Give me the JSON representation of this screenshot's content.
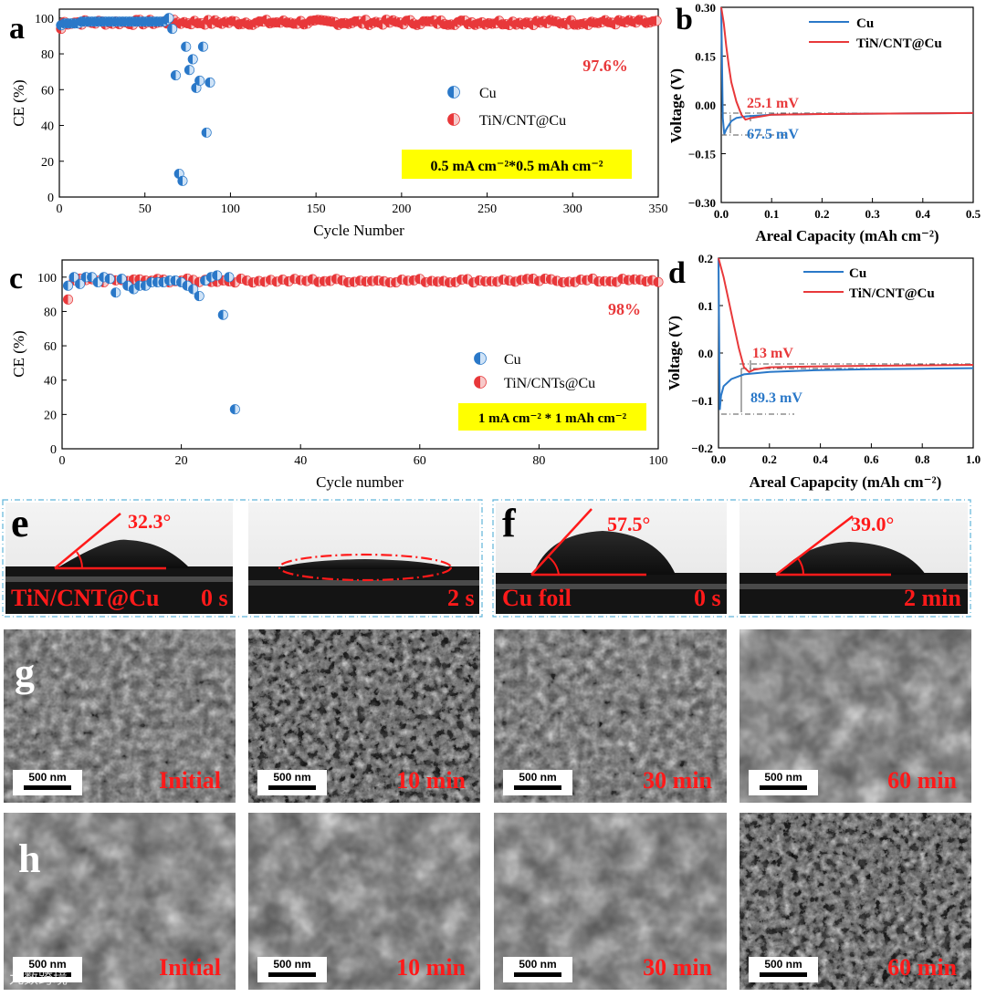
{
  "figure": {
    "panels": {
      "a": "a",
      "b": "b",
      "c": "c",
      "d": "d",
      "e": "e",
      "f": "f",
      "g": "g",
      "h": "h"
    },
    "watermark": "九数跨境"
  },
  "colors": {
    "cu": "#2a78c8",
    "tin": "#e8383a",
    "highlight": "#ffff00",
    "caption_red": "#ff1a1a"
  },
  "chart_data": [
    {
      "id": "a",
      "type": "scatter",
      "xlabel": "Cycle Number",
      "ylabel": "CE (%)",
      "xlim": [
        0,
        350
      ],
      "ylim": [
        0,
        105
      ],
      "xticks": [
        0,
        50,
        100,
        150,
        200,
        250,
        300,
        350
      ],
      "yticks": [
        0,
        20,
        40,
        60,
        80,
        100
      ],
      "annotation": "97.6%",
      "condition": "0.5 mA cm⁻²*0.5 mAh cm⁻²",
      "legend": [
        "Cu",
        "TiN/CNT@Cu"
      ],
      "series": [
        {
          "name": "Cu",
          "points": [
            [
              1,
              96
            ],
            [
              3,
              97
            ],
            [
              5,
              97
            ],
            [
              7,
              97
            ],
            [
              9,
              97
            ],
            [
              11,
              97
            ],
            [
              13,
              98
            ],
            [
              15,
              98
            ],
            [
              17,
              98
            ],
            [
              19,
              98
            ],
            [
              21,
              98
            ],
            [
              23,
              98
            ],
            [
              25,
              98
            ],
            [
              27,
              98
            ],
            [
              29,
              98
            ],
            [
              31,
              98
            ],
            [
              33,
              98
            ],
            [
              35,
              98
            ],
            [
              37,
              98
            ],
            [
              39,
              98
            ],
            [
              41,
              98
            ],
            [
              43,
              98
            ],
            [
              45,
              98
            ],
            [
              47,
              98
            ],
            [
              49,
              98
            ],
            [
              51,
              98
            ],
            [
              53,
              98
            ],
            [
              55,
              98
            ],
            [
              57,
              98
            ],
            [
              59,
              98
            ],
            [
              61,
              98
            ],
            [
              63,
              99
            ],
            [
              64,
              100
            ],
            [
              66,
              94
            ],
            [
              68,
              68
            ],
            [
              70,
              13
            ],
            [
              72,
              9
            ],
            [
              74,
              84
            ],
            [
              76,
              71
            ],
            [
              78,
              77
            ],
            [
              80,
              61
            ],
            [
              82,
              65
            ],
            [
              84,
              84
            ],
            [
              86,
              36
            ],
            [
              88,
              64
            ]
          ]
        },
        {
          "name": "TiN/CNT@Cu",
          "summary": {
            "x_start": 1,
            "x_end": 350,
            "mean": 97.6,
            "spread": 1.5,
            "first_value": 94
          }
        }
      ]
    },
    {
      "id": "b",
      "type": "line",
      "xlabel": "Areal Capacity (mAh cm⁻²)",
      "ylabel": "Voltage (V)",
      "xlim": [
        0,
        0.5
      ],
      "ylim": [
        -0.3,
        0.3
      ],
      "xticks": [
        "0.0",
        "0.1",
        "0.2",
        "0.3",
        "0.4",
        "0.5"
      ],
      "yticks": [
        "0.30",
        "0.15",
        "0.00",
        "−0.15",
        "−0.30"
      ],
      "legend": [
        "Cu",
        "TiN/CNT@Cu"
      ],
      "annotations": [
        "25.1 mV",
        "67.5 mV"
      ],
      "series": [
        {
          "name": "Cu",
          "x": [
            0.0,
            0.003,
            0.006,
            0.01,
            0.02,
            0.03,
            0.05,
            0.1,
            0.2,
            0.3,
            0.4,
            0.5
          ],
          "y": [
            0.3,
            -0.04,
            -0.09,
            -0.075,
            -0.05,
            -0.04,
            -0.035,
            -0.03,
            -0.028,
            -0.027,
            -0.026,
            -0.025
          ]
        },
        {
          "name": "TiN/CNT@Cu",
          "x": [
            0.0,
            0.005,
            0.01,
            0.015,
            0.02,
            0.03,
            0.04,
            0.048,
            0.06,
            0.08,
            0.1,
            0.2,
            0.3,
            0.4,
            0.5
          ],
          "y": [
            0.3,
            0.25,
            0.18,
            0.12,
            0.07,
            0.01,
            -0.03,
            -0.045,
            -0.04,
            -0.035,
            -0.03,
            -0.028,
            -0.027,
            -0.026,
            -0.025
          ]
        }
      ]
    },
    {
      "id": "c",
      "type": "scatter",
      "xlabel": "Cycle number",
      "ylabel": "CE (%)",
      "xlim": [
        0,
        100
      ],
      "ylim": [
        0,
        110
      ],
      "xticks": [
        0,
        20,
        40,
        60,
        80,
        100
      ],
      "yticks": [
        0,
        20,
        40,
        60,
        80,
        100
      ],
      "annotation": "98%",
      "condition": "1 mA cm⁻² * 1 mAh cm⁻²",
      "legend": [
        "Cu",
        "TiN/CNTs@Cu"
      ],
      "series": [
        {
          "name": "Cu",
          "points": [
            [
              1,
              95
            ],
            [
              2,
              100
            ],
            [
              3,
              96
            ],
            [
              4,
              100
            ],
            [
              5,
              100
            ],
            [
              6,
              97
            ],
            [
              7,
              100
            ],
            [
              8,
              99
            ],
            [
              9,
              91
            ],
            [
              10,
              99
            ],
            [
              11,
              95
            ],
            [
              12,
              93
            ],
            [
              13,
              95
            ],
            [
              14,
              95
            ],
            [
              15,
              97
            ],
            [
              16,
              97
            ],
            [
              17,
              97
            ],
            [
              18,
              98
            ],
            [
              19,
              98
            ],
            [
              20,
              97
            ],
            [
              21,
              95
            ],
            [
              22,
              93
            ],
            [
              23,
              89
            ],
            [
              24,
              98
            ],
            [
              25,
              100
            ],
            [
              26,
              101
            ],
            [
              27,
              78
            ],
            [
              28,
              100
            ],
            [
              29,
              23
            ]
          ]
        },
        {
          "name": "TiN/CNTs@Cu",
          "summary": {
            "x_start": 1,
            "x_end": 100,
            "mean": 98,
            "spread": 1.2,
            "first_value": 87
          }
        }
      ]
    },
    {
      "id": "d",
      "type": "line",
      "xlabel": "Areal Capapcity (mAh cm⁻²)",
      "ylabel": "Voltage (V)",
      "xlim": [
        0,
        1.0
      ],
      "ylim": [
        -0.2,
        0.2
      ],
      "xticks": [
        "0.0",
        "0.2",
        "0.4",
        "0.6",
        "0.8",
        "1.0"
      ],
      "yticks": [
        "0.2",
        "0.1",
        "0.0",
        "−0.1",
        "−0.2"
      ],
      "legend": [
        "Cu",
        "TiN/CNT@Cu"
      ],
      "annotations": [
        "13 mV",
        "89.3 mV"
      ],
      "series": [
        {
          "name": "Cu",
          "x": [
            0.0,
            0.005,
            0.01,
            0.02,
            0.05,
            0.1,
            0.2,
            0.4,
            0.6,
            0.8,
            1.0
          ],
          "y": [
            0.2,
            -0.12,
            -0.09,
            -0.07,
            -0.055,
            -0.045,
            -0.04,
            -0.036,
            -0.034,
            -0.033,
            -0.032
          ]
        },
        {
          "name": "TiN/CNT@Cu",
          "x": [
            0.0,
            0.02,
            0.04,
            0.06,
            0.08,
            0.1,
            0.12,
            0.14,
            0.2,
            0.4,
            0.6,
            0.8,
            1.0
          ],
          "y": [
            0.2,
            0.16,
            0.11,
            0.06,
            0.01,
            -0.03,
            -0.04,
            -0.035,
            -0.03,
            -0.028,
            -0.027,
            -0.026,
            -0.025
          ]
        }
      ]
    }
  ],
  "contact_angle": {
    "e": {
      "angle": "32.3°",
      "sample": "TiN/CNT@Cu",
      "t0": "0 s",
      "t1": "2 s"
    },
    "f": {
      "angle0": "57.5°",
      "angle1": "39.0°",
      "sample": "Cu foil",
      "t0": "0 s",
      "t1": "2 min"
    }
  },
  "sem": {
    "scale_bar": "500 nm",
    "g": [
      "Initial",
      "10 min",
      "30 min",
      "60 min"
    ],
    "h": [
      "Initial",
      "10 min",
      "30 min",
      "60 min"
    ]
  }
}
